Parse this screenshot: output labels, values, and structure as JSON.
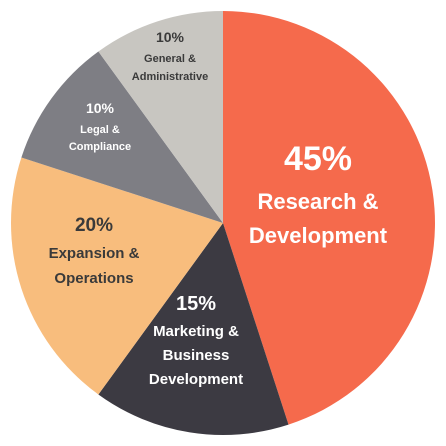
{
  "chart_data": {
    "type": "pie",
    "slices": [
      {
        "percent_label": "45%",
        "label_lines": [
          "Research &",
          "Development"
        ],
        "value": 45,
        "color": "#F56A4C",
        "text_color": "#FFFFFF"
      },
      {
        "percent_label": "15%",
        "label_lines": [
          "Marketing &",
          "Business",
          "Development"
        ],
        "value": 15,
        "color": "#3C3A42",
        "text_color": "#FFFFFF"
      },
      {
        "percent_label": "20%",
        "label_lines": [
          "Expansion &",
          "Operations"
        ],
        "value": 20,
        "color": "#F8BD7D",
        "text_color": "#3A3A3A"
      },
      {
        "percent_label": "10%",
        "label_lines": [
          "Legal &",
          "Compliance"
        ],
        "value": 10,
        "color": "#7E7E84",
        "text_color": "#FFFFFF"
      },
      {
        "percent_label": "10%",
        "label_lines": [
          "General &",
          "Administrative"
        ],
        "value": 10,
        "color": "#C8C6C1",
        "text_color": "#3A3A3A"
      }
    ]
  }
}
